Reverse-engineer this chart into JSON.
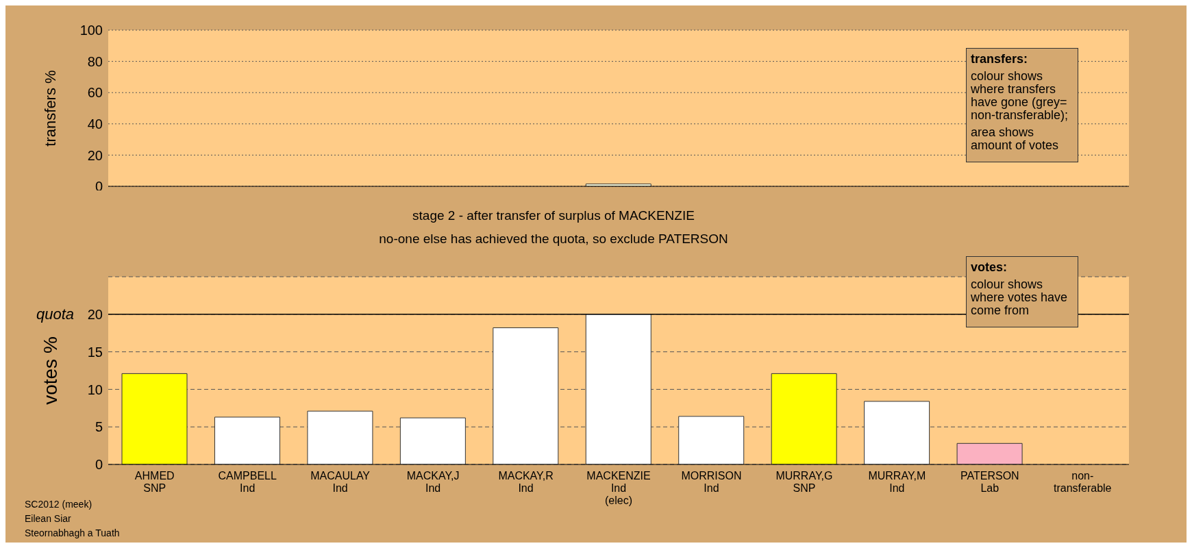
{
  "chart_data": [
    {
      "type": "bar",
      "ylabel": "transfers %",
      "categories": [
        null,
        null,
        null,
        null,
        null,
        null,
        null,
        null,
        null,
        null,
        null
      ],
      "values": [
        null,
        null,
        null,
        null,
        null,
        1.5,
        null,
        null,
        null,
        null,
        null
      ],
      "color": "#ffffe0",
      "ylim": [
        0,
        100
      ],
      "yticks": [
        0,
        20,
        40,
        60,
        80,
        100
      ],
      "grid": "y",
      "legend": false,
      "tick_labels": "y",
      "annotations": [
        "transfers:",
        "colour shows where transfers have gone (grey= non-transferable);",
        "area shows amount of votes"
      ]
    },
    {
      "type": "bar",
      "title": "stage 2 - after transfer of surplus of MACKENZIE",
      "subtitle": "no-one else has achieved the quota, so exclude PATERSON",
      "ylabel": "votes %",
      "categories": [
        "AHMED\nSNP",
        "CAMPBELL\nInd",
        "MACAULAY\nInd",
        "MACKAY,J\nInd",
        "MACKAY,R\nInd",
        "MACKENZIE\nInd\n(elec)",
        "MORRISON\nInd",
        "MURRAY,G\nSNP",
        "MURRAY,M\nInd",
        "PATERSON\nLab",
        "non-\ntransferable"
      ],
      "values": [
        12.1,
        6.3,
        7.1,
        6.2,
        18.2,
        20.0,
        6.4,
        12.1,
        8.4,
        2.8,
        null
      ],
      "colors": [
        "#ffff00",
        "#ffffff",
        "#ffffff",
        "#ffffff",
        "#ffffff",
        "#ffffff",
        "#ffffff",
        "#ffff00",
        "#ffffff",
        "#fbb1c1",
        "#c0c0c0"
      ],
      "ylim": [
        0,
        25
      ],
      "yticks": [
        0,
        5,
        10,
        15,
        20
      ],
      "grid": "y",
      "legend": false,
      "ref_lines": [
        {
          "axis": "y",
          "value": 20,
          "label": "quota",
          "color": "#000000"
        }
      ],
      "annotations": [
        "votes:",
        "colour shows where votes have come from",
        "SC2012 (meek)",
        "Eilean Siar",
        "Steornabhagh a Tuath"
      ]
    }
  ]
}
